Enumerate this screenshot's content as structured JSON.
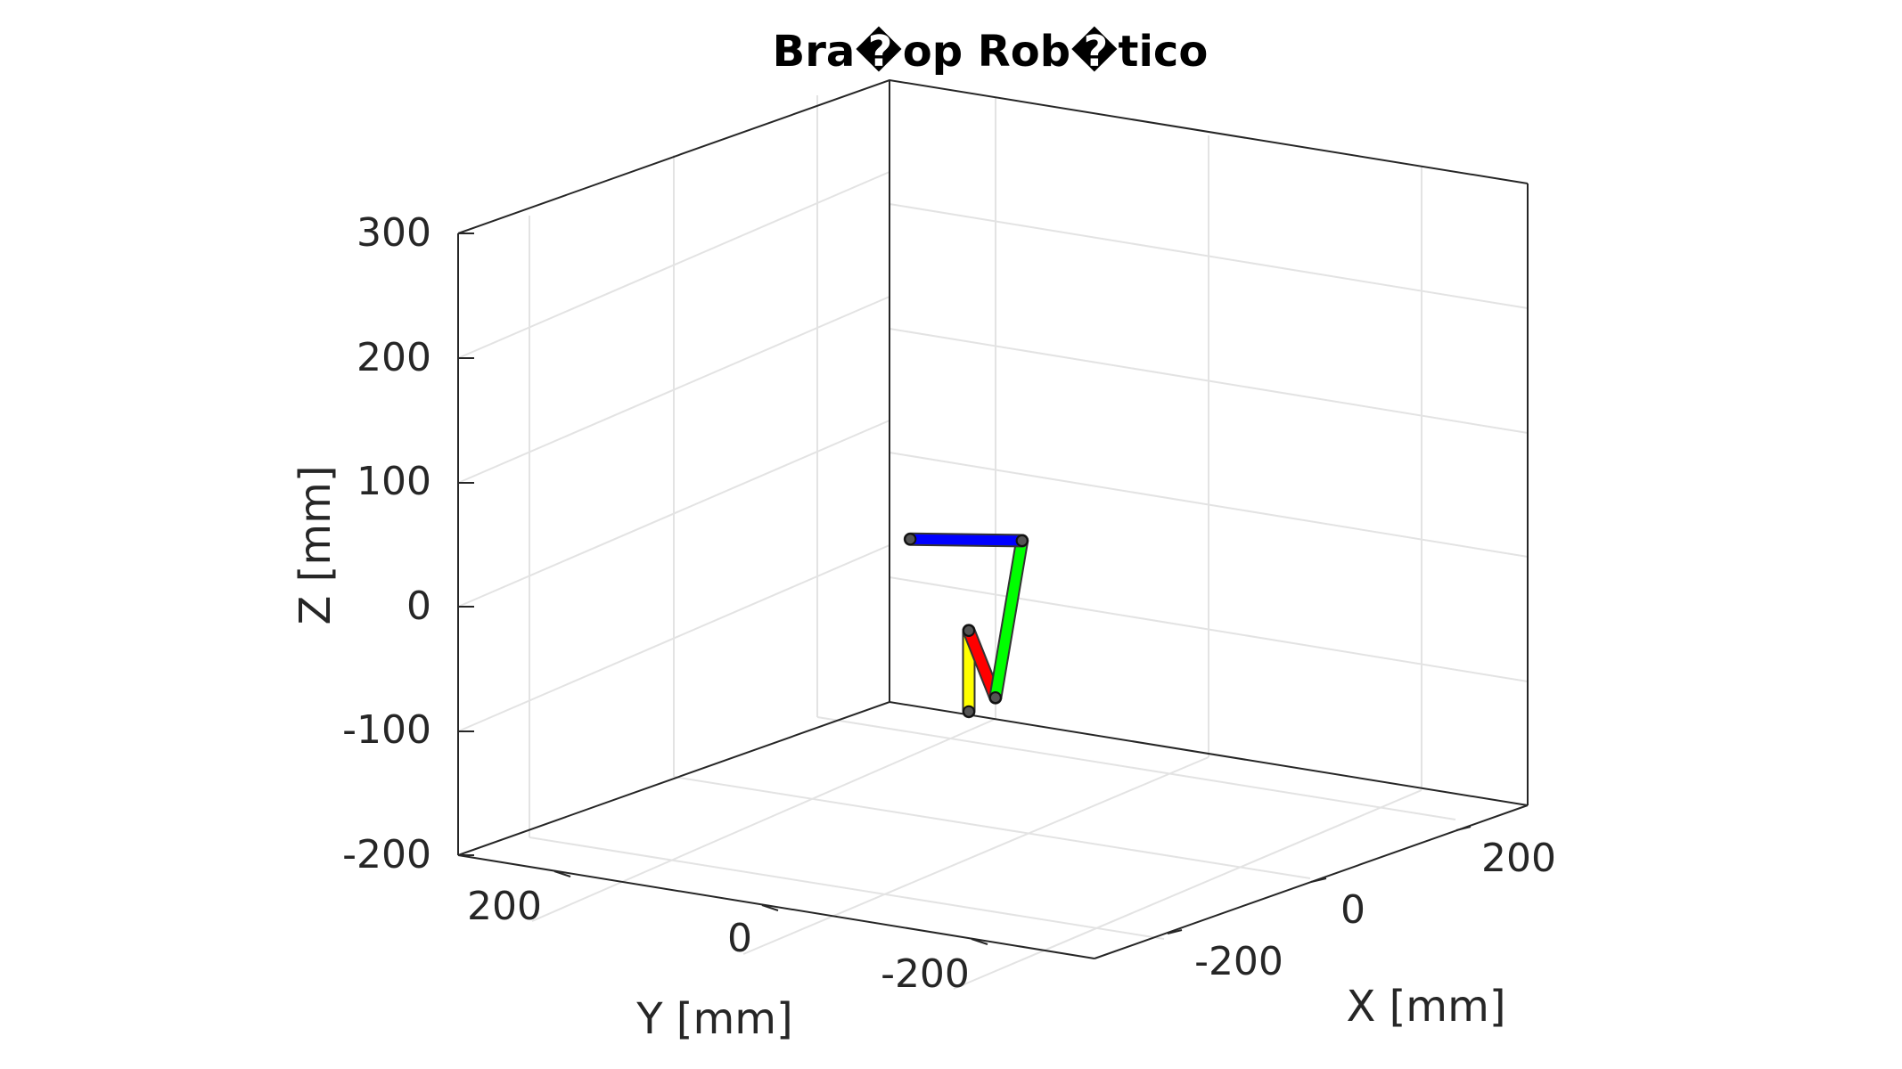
{
  "chart_data": {
    "type": "line3d",
    "title": "Bra�op Rob�tico",
    "xlabel": "X [mm]",
    "ylabel": "Y [mm]",
    "zlabel": "Z [mm]",
    "xticks": [
      "-200",
      "0",
      "200"
    ],
    "yticks": [
      "200",
      "0",
      "-200"
    ],
    "zticks": [
      "300",
      "200",
      "100",
      "0",
      "-100",
      "-200"
    ],
    "zlim": [
      -200,
      300
    ],
    "grid": true,
    "series": [
      {
        "color": "#ffff00",
        "points": [
          [
            -15,
            15,
            0
          ],
          [
            -15,
            15,
            65
          ]
        ]
      },
      {
        "color": "#ff0000",
        "points": [
          [
            -15,
            15,
            65
          ],
          [
            10,
            15,
            15
          ]
        ]
      },
      {
        "color": "#00ff00",
        "points": [
          [
            10,
            15,
            15
          ],
          [
            35,
            15,
            145
          ]
        ]
      },
      {
        "color": "#0000ff",
        "points": [
          [
            35,
            15,
            145
          ],
          [
            -70,
            15,
            130
          ]
        ]
      }
    ]
  }
}
